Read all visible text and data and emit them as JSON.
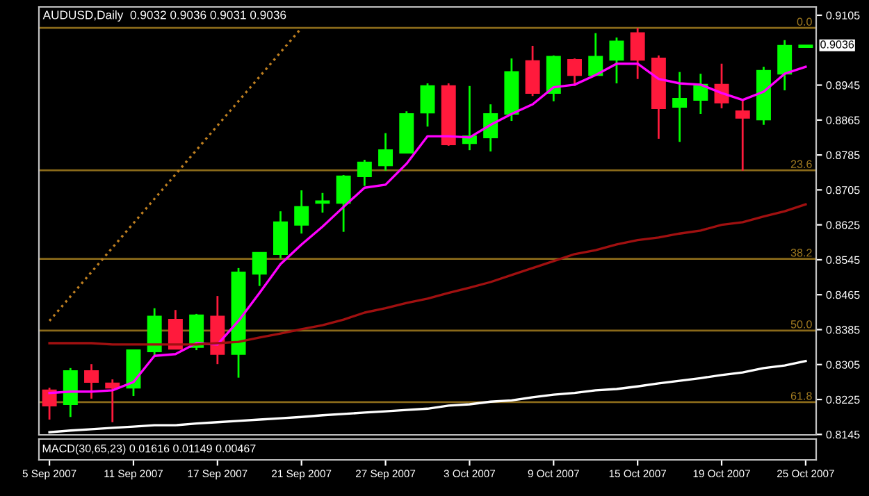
{
  "chart_data": {
    "type": "candlestick",
    "title": "AUDUSD,Daily  0.9032 0.9036 0.9031 0.9036",
    "categories": [
      "5 Sep 2007",
      null,
      null,
      null,
      "11 Sep 2007",
      null,
      null,
      null,
      "17 Sep 2007",
      null,
      null,
      null,
      "21 Sep 2007",
      null,
      null,
      null,
      "27 Sep 2007",
      null,
      null,
      null,
      "3 Oct 2007",
      null,
      null,
      null,
      "9 Oct 2007",
      null,
      null,
      null,
      "15 Oct 2007",
      null,
      null,
      null,
      "19 Oct 2007",
      null,
      null,
      null,
      "25 Oct 2007"
    ],
    "ohlc": [
      [
        0.8246,
        0.8252,
        0.8179,
        0.8211
      ],
      [
        0.8214,
        0.8297,
        0.8185,
        0.829
      ],
      [
        0.829,
        0.8306,
        0.8227,
        0.8265
      ],
      [
        0.8262,
        0.8271,
        0.8173,
        0.8252
      ],
      [
        0.8252,
        0.8338,
        0.8233,
        0.8338
      ],
      [
        0.8335,
        0.8434,
        0.8322,
        0.8415
      ],
      [
        0.8408,
        0.843,
        0.8341,
        0.8341
      ],
      [
        0.8345,
        0.8421,
        0.8338,
        0.8418
      ],
      [
        0.8415,
        0.8462,
        0.8306,
        0.8329
      ],
      [
        0.8329,
        0.8526,
        0.8275,
        0.8516
      ],
      [
        0.8513,
        0.8561,
        0.8485,
        0.8561
      ],
      [
        0.8558,
        0.8656,
        0.8548,
        0.8631
      ],
      [
        0.8625,
        0.8704,
        0.8605,
        0.8666
      ],
      [
        0.8675,
        0.8698,
        0.8653,
        0.8679
      ],
      [
        0.8675,
        0.8739,
        0.8609,
        0.8736
      ],
      [
        0.8736,
        0.8774,
        0.8714,
        0.8768
      ],
      [
        0.8761,
        0.8835,
        0.8749,
        0.8796
      ],
      [
        0.879,
        0.8885,
        0.879,
        0.8879
      ],
      [
        0.8882,
        0.8949,
        0.885,
        0.8943
      ],
      [
        0.8943,
        0.8949,
        0.8806,
        0.8809
      ],
      [
        0.8812,
        0.8943,
        0.8796,
        0.8828
      ],
      [
        0.8825,
        0.8901,
        0.8793,
        0.8879
      ],
      [
        0.8879,
        0.9006,
        0.8863,
        0.8975
      ],
      [
        0.9,
        0.9035,
        0.892,
        0.8927
      ],
      [
        0.8927,
        0.9013,
        0.8908,
        0.901
      ],
      [
        0.9003,
        0.9006,
        0.8943,
        0.8968
      ],
      [
        0.8968,
        0.9064,
        0.8968,
        0.901
      ],
      [
        0.9003,
        0.9054,
        0.8949,
        0.9045
      ],
      [
        0.9064,
        0.9076,
        0.8959,
        0.9003
      ],
      [
        0.9006,
        0.9013,
        0.8822,
        0.8892
      ],
      [
        0.8895,
        0.8975,
        0.8815,
        0.8914
      ],
      [
        0.8911,
        0.8971,
        0.8879,
        0.8946
      ],
      [
        0.8946,
        0.8994,
        0.8892,
        0.8905
      ],
      [
        0.8885,
        0.8914,
        0.8749,
        0.887
      ],
      [
        0.8866,
        0.8987,
        0.8854,
        0.8978
      ],
      [
        0.8971,
        0.9048,
        0.8933,
        0.9035
      ],
      [
        0.9032,
        0.9036,
        0.9031,
        0.9036
      ]
    ],
    "colors": [
      "#ff1a3c",
      "#00ff00",
      "#ff1a3c",
      "#ff1a3c",
      "#00ff00",
      "#00ff00",
      "#ff1a3c",
      "#00ff00",
      "#ff1a3c",
      "#00ff00",
      "#00ff00",
      "#00ff00",
      "#00ff00",
      "#00ff00",
      "#00ff00",
      "#00ff00",
      "#00ff00",
      "#00ff00",
      "#00ff00",
      "#ff1a3c",
      "#00ff00",
      "#00ff00",
      "#00ff00",
      "#ff1a3c",
      "#00ff00",
      "#ff1a3c",
      "#00ff00",
      "#00ff00",
      "#ff1a3c",
      "#ff1a3c",
      "#00ff00",
      "#00ff00",
      "#ff1a3c",
      "#ff1a3c",
      "#00ff00",
      "#00ff00",
      "#00ff00"
    ],
    "series": [
      {
        "type": "line",
        "color": "#ff00ff",
        "values": [
          0.824,
          0.8243,
          0.8243,
          0.8246,
          0.8265,
          0.8325,
          0.8329,
          0.8354,
          0.8351,
          0.8405,
          0.8469,
          0.8535,
          0.858,
          0.8621,
          0.8666,
          0.871,
          0.8717,
          0.8765,
          0.8828,
          0.8828,
          0.8825,
          0.8854,
          0.8879,
          0.8901,
          0.894,
          0.8946,
          0.8968,
          0.8994,
          0.8994,
          0.8959,
          0.8949,
          0.8946,
          0.8927,
          0.8911,
          0.893,
          0.8971,
          0.8987
        ]
      },
      {
        "type": "line",
        "color": "#a01010",
        "values": [
          0.8354,
          0.8354,
          0.8354,
          0.8351,
          0.8351,
          0.8351,
          0.8351,
          0.8351,
          0.8354,
          0.8357,
          0.8367,
          0.8376,
          0.8386,
          0.8395,
          0.8408,
          0.8424,
          0.8434,
          0.8446,
          0.8456,
          0.8469,
          0.8481,
          0.8494,
          0.851,
          0.8526,
          0.8542,
          0.8558,
          0.8567,
          0.858,
          0.859,
          0.8596,
          0.8605,
          0.8612,
          0.8625,
          0.8631,
          0.8644,
          0.8656,
          0.8672
        ]
      },
      {
        "type": "line",
        "color": "#ffffff",
        "values": [
          0.815,
          0.8154,
          0.8157,
          0.816,
          0.8163,
          0.8166,
          0.8166,
          0.817,
          0.8173,
          0.8176,
          0.8179,
          0.8182,
          0.8185,
          0.8189,
          0.8192,
          0.8195,
          0.8198,
          0.8201,
          0.8204,
          0.8211,
          0.8214,
          0.822,
          0.8223,
          0.823,
          0.8236,
          0.824,
          0.8246,
          0.8249,
          0.8255,
          0.8262,
          0.8268,
          0.8274,
          0.8281,
          0.8287,
          0.8297,
          0.8303,
          0.8313
        ]
      },
      {
        "type": "line",
        "color": "#c08020",
        "line_style": "dotted",
        "values": [
          0.8405,
          null,
          null,
          null,
          null,
          null,
          null,
          null,
          null,
          null,
          null,
          null,
          0.9076,
          null,
          null,
          null,
          null,
          null,
          null,
          null,
          null,
          null,
          null,
          null,
          null,
          null,
          null,
          null,
          null,
          null,
          null,
          null,
          null,
          null,
          null,
          null,
          null
        ]
      }
    ],
    "ylim": [
      0.8144,
      0.9124
    ],
    "yticks": [
      0.9105,
      0.8945,
      0.8865,
      0.8785,
      0.8705,
      0.8625,
      0.8545,
      0.8465,
      0.8385,
      0.8305,
      0.8225,
      0.8145
    ],
    "ref_lines": [
      {
        "axis": "y",
        "value": 0.9076,
        "color": "#8a6a1a"
      },
      {
        "axis": "y",
        "value": 0.875,
        "color": "#8a6a1a"
      },
      {
        "axis": "y",
        "value": 0.8547,
        "color": "#8a6a1a"
      },
      {
        "axis": "y",
        "value": 0.8383,
        "color": "#8a6a1a"
      },
      {
        "axis": "y",
        "value": 0.8219,
        "color": "#8a6a1a"
      }
    ],
    "annotations": [
      {
        "text": "0.0",
        "y": 0.9076
      },
      {
        "text": "23.6",
        "y": 0.875
      },
      {
        "text": "38.2",
        "y": 0.8547
      },
      {
        "text": "50.0",
        "y": 0.8383
      },
      {
        "text": "61.8",
        "y": 0.8219
      },
      "0.9036",
      "MACD(30,65,23) 0.01616 0.01149 0.00467"
    ]
  }
}
